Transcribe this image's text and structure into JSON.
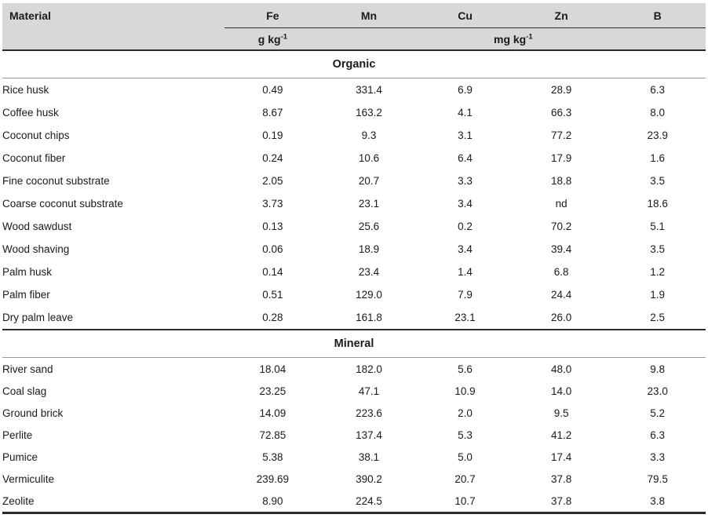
{
  "table": {
    "header": {
      "material_label": "Material",
      "elements": [
        "Fe",
        "Mn",
        "Cu",
        "Zn",
        "B"
      ],
      "unit_fe": {
        "base": "g kg",
        "exponent": "-1"
      },
      "unit_others": {
        "base": "mg kg",
        "exponent": "-1"
      }
    },
    "sections": [
      {
        "title": "Organic",
        "rows": [
          [
            "Rice husk",
            "0.49",
            "331.4",
            "6.9",
            "28.9",
            "6.3"
          ],
          [
            "Coffee husk",
            "8.67",
            "163.2",
            "4.1",
            "66.3",
            "8.0"
          ],
          [
            "Coconut chips",
            "0.19",
            "9.3",
            "3.1",
            "77.2",
            "23.9"
          ],
          [
            "Coconut fiber",
            "0.24",
            "10.6",
            "6.4",
            "17.9",
            "1.6"
          ],
          [
            "Fine coconut substrate",
            "2.05",
            "20.7",
            "3.3",
            "18.8",
            "3.5"
          ],
          [
            "Coarse coconut substrate",
            "3.73",
            "23.1",
            "3.4",
            "nd",
            "18.6"
          ],
          [
            "Wood sawdust",
            "0.13",
            "25.6",
            "0.2",
            "70.2",
            "5.1"
          ],
          [
            "Wood shaving",
            "0.06",
            "18.9",
            "3.4",
            "39.4",
            "3.5"
          ],
          [
            "Palm husk",
            "0.14",
            "23.4",
            "1.4",
            "6.8",
            "1.2"
          ],
          [
            "Palm fiber",
            "0.51",
            "129.0",
            "7.9",
            "24.4",
            "1.9"
          ],
          [
            "Dry palm leave",
            "0.28",
            "161.8",
            "23.1",
            "26.0",
            "2.5"
          ]
        ]
      },
      {
        "title": "Mineral",
        "rows": [
          [
            "River sand",
            "18.04",
            "182.0",
            "5.6",
            "48.0",
            "9.8"
          ],
          [
            "Coal slag",
            "23.25",
            "47.1",
            "10.9",
            "14.0",
            "23.0"
          ],
          [
            "Ground brick",
            "14.09",
            "223.6",
            "2.0",
            "9.5",
            "5.2"
          ],
          [
            "Perlite",
            "72.85",
            "137.4",
            "5.3",
            "41.2",
            "6.3"
          ],
          [
            "Pumice",
            "5.38",
            "38.1",
            "5.0",
            "17.4",
            "3.3"
          ],
          [
            "Vermiculite",
            "239.69",
            "390.2",
            "20.7",
            "37.8",
            "79.5"
          ],
          [
            "Zeolite",
            "8.90",
            "224.5",
            "10.7",
            "37.8",
            "3.8"
          ]
        ]
      }
    ]
  },
  "colors": {
    "header_background": "#d8d8d8",
    "rule_dark": "#2b2b2b",
    "rule_light": "#9a9a9a",
    "text": "#1a1a1a"
  }
}
